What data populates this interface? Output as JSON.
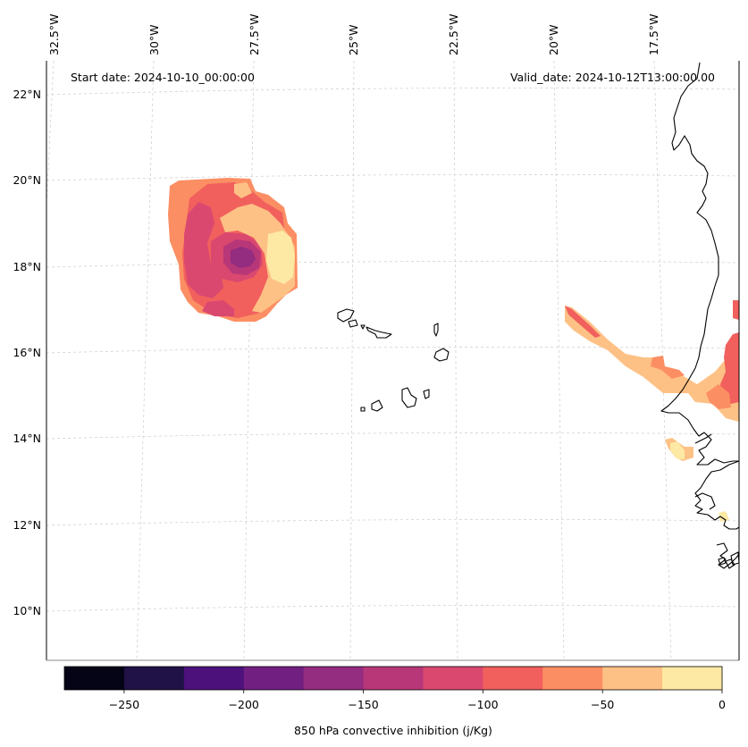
{
  "map": {
    "start_label": "Start date: 2024-10-10_00:00:00",
    "valid_label": "Valid_date: 2024-10-12T13:00:00.00",
    "lat_labels": [
      "22°N",
      "20°N",
      "18°N",
      "16°N",
      "14°N",
      "12°N",
      "10°N"
    ],
    "lon_labels": [
      "32.5°W",
      "30°W",
      "27.5°W",
      "25°W",
      "22.5°W",
      "20°W",
      "17.5°W"
    ]
  },
  "colorbar": {
    "label": "850 hPa convective inhibition (j/Kg)",
    "tick_labels": [
      "−250",
      "−200",
      "−150",
      "−100",
      "−50",
      "0"
    ],
    "levels": [
      -275,
      -250,
      -225,
      -200,
      -175,
      -150,
      -125,
      -100,
      -75,
      -50,
      -25,
      0
    ],
    "colors": [
      "#050316",
      "#201146",
      "#4c117b",
      "#711f81",
      "#942c80",
      "#b73779",
      "#da4870",
      "#f1605d",
      "#fc8e63",
      "#fec185",
      "#fde9a4"
    ]
  },
  "colors": {
    "coastline": "#000000",
    "gridline": "#cccccc",
    "axes_frame": "#000000"
  }
}
